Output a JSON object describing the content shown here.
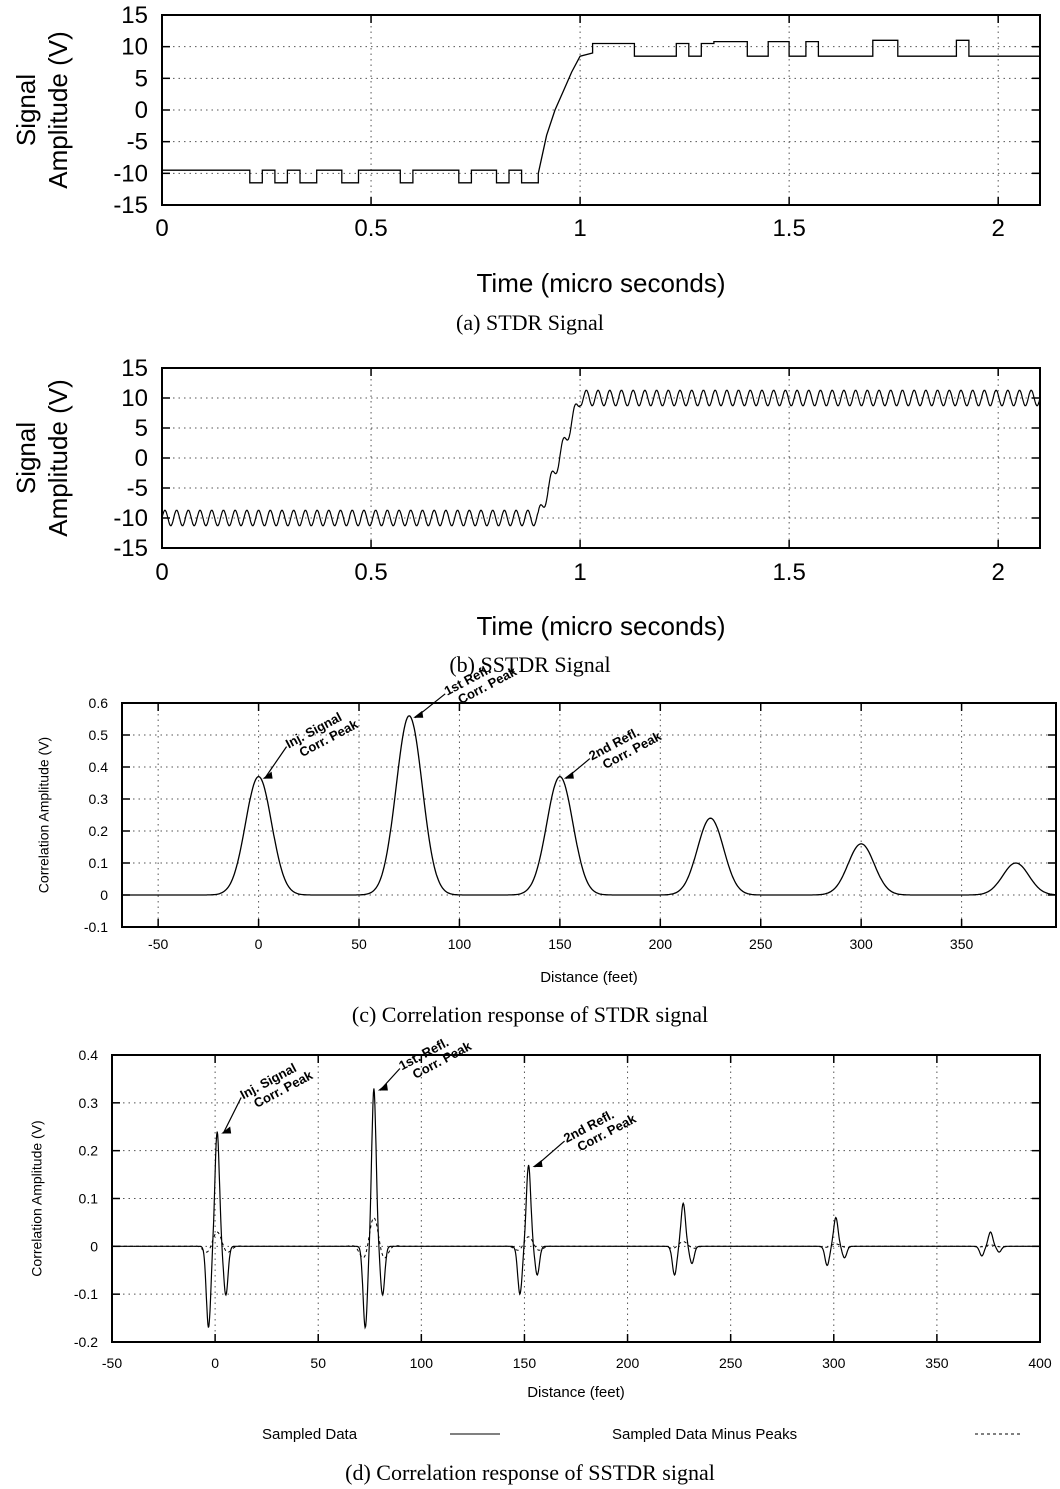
{
  "chart_data": [
    {
      "type": "line",
      "panel": "a",
      "caption": "(a) STDR Signal",
      "xlabel": "Time (micro seconds)",
      "ylabel": "Signal Amplitude (V)",
      "xlim": [
        0,
        2.1
      ],
      "ylim": [
        -15,
        15
      ],
      "xticks": [
        0,
        0.5,
        1,
        1.5,
        2
      ],
      "xtick_labels": [
        "0",
        "0.5",
        "1",
        "1.5",
        "2"
      ],
      "yticks": [
        15,
        10,
        5,
        0,
        -5,
        -10,
        -15
      ],
      "ytick_labels": [
        "15",
        "10",
        "5",
        "0",
        "-5",
        "-10",
        "-15"
      ],
      "grid": true,
      "series": [
        {
          "x": [
            0,
            0.21,
            0.21,
            0.24,
            0.24,
            0.27,
            0.27,
            0.3,
            0.3,
            0.33,
            0.33,
            0.37,
            0.37,
            0.43,
            0.43,
            0.47,
            0.47,
            0.57,
            0.57,
            0.6,
            0.6,
            0.71,
            0.71,
            0.74,
            0.74,
            0.8,
            0.8,
            0.83,
            0.83,
            0.86,
            0.86,
            0.9,
            0.9,
            0.92,
            0.94,
            0.96,
            0.98,
            1.0,
            1.03,
            1.03,
            1.13,
            1.13,
            1.23,
            1.23,
            1.26,
            1.26,
            1.29,
            1.29,
            1.32,
            1.32,
            1.4,
            1.4,
            1.45,
            1.45,
            1.5,
            1.5,
            1.54,
            1.54,
            1.57,
            1.57,
            1.6,
            1.6,
            1.7,
            1.7,
            1.76,
            1.76,
            1.9,
            1.9,
            1.93,
            1.93,
            2.1
          ],
          "y": [
            -9.5,
            -9.5,
            -11.5,
            -11.5,
            -9.5,
            -9.5,
            -11.5,
            -11.5,
            -9.5,
            -9.5,
            -11.5,
            -11.5,
            -9.5,
            -9.5,
            -11.5,
            -11.5,
            -9.5,
            -9.5,
            -11.5,
            -11.5,
            -9.5,
            -9.5,
            -11.5,
            -11.5,
            -9.5,
            -9.5,
            -11.5,
            -11.5,
            -9.5,
            -9.5,
            -11.5,
            -11.5,
            -10,
            -4,
            0,
            3,
            6,
            8.5,
            9,
            10.5,
            10.5,
            8.5,
            8.5,
            10.5,
            10.5,
            8.5,
            8.5,
            10.5,
            10.5,
            10.8,
            10.8,
            8.5,
            8.5,
            10.8,
            10.8,
            8.5,
            8.5,
            10.8,
            10.8,
            8.5,
            8.5,
            8.5,
            8.5,
            11,
            11,
            8.5,
            8.5,
            11,
            11,
            8.5,
            8.5
          ]
        }
      ]
    },
    {
      "type": "line",
      "panel": "b",
      "caption": "(b) SSTDR Signal",
      "xlabel": "Time (micro seconds)",
      "ylabel": "Signal Amplitude (V)",
      "xlim": [
        0,
        2.1
      ],
      "ylim": [
        -15,
        15
      ],
      "xticks": [
        0,
        0.5,
        1,
        1.5,
        2
      ],
      "xtick_labels": [
        "0",
        "0.5",
        "1",
        "1.5",
        "2"
      ],
      "yticks": [
        15,
        10,
        5,
        0,
        -5,
        -10,
        -15
      ],
      "ytick_labels": [
        "15",
        "10",
        "5",
        "0",
        "-5",
        "-10",
        "-15"
      ],
      "grid": true,
      "series": [
        {
          "pre_level": -10,
          "post_level": 10,
          "ripple_amplitude": 1.3,
          "ripple_period": 0.028,
          "transition": {
            "start": 0.9,
            "end": 1.0
          }
        }
      ]
    },
    {
      "type": "line",
      "panel": "c",
      "caption": "(c) Correlation response of STDR signal",
      "xlabel": "Distance (feet)",
      "ylabel": "Correlation Amplitude (V)",
      "xlim": [
        -68,
        397
      ],
      "ylim": [
        -0.1,
        0.6
      ],
      "xticks": [
        -50,
        0,
        50,
        100,
        150,
        200,
        250,
        300,
        350
      ],
      "xtick_labels": [
        "-50",
        "0",
        "50",
        "100",
        "150",
        "200",
        "250",
        "300",
        "350"
      ],
      "yticks": [
        0.6,
        0.5,
        0.4,
        0.3,
        0.2,
        0.1,
        0,
        -0.1
      ],
      "ytick_labels": [
        "0.6",
        "0.5",
        "0.4",
        "0.3",
        "0.2",
        "0.1",
        "0",
        "-0.1"
      ],
      "grid": true,
      "series": [
        {
          "peaks": [
            {
              "x": 0,
              "y": 0.37
            },
            {
              "x": 75,
              "y": 0.56
            },
            {
              "x": 150,
              "y": 0.37
            },
            {
              "x": 225,
              "y": 0.24
            },
            {
              "x": 300,
              "y": 0.16
            },
            {
              "x": 377,
              "y": 0.1
            }
          ],
          "peak_width": 6.5
        }
      ],
      "annotations": [
        {
          "line1": "Inj. Signal",
          "line2": "Corr. Peak",
          "x": 0,
          "y": 0.37
        },
        {
          "line1": "1st Refl.",
          "line2": "Corr. Peak",
          "x": 75,
          "y": 0.56
        },
        {
          "line1": "2nd Refl.",
          "line2": "Corr. Peak",
          "x": 150,
          "y": 0.37
        }
      ]
    },
    {
      "type": "line",
      "panel": "d",
      "caption": "(d) Correlation response of SSTDR signal",
      "xlabel": "Distance (feet)",
      "ylabel": "Correlation Amplitude (V)",
      "xlim": [
        -50,
        400
      ],
      "ylim": [
        -0.2,
        0.4
      ],
      "xticks": [
        -50,
        0,
        50,
        100,
        150,
        200,
        250,
        300,
        350,
        400
      ],
      "xtick_labels": [
        "-50",
        "0",
        "50",
        "100",
        "150",
        "200",
        "250",
        "300",
        "350",
        "400"
      ],
      "yticks": [
        0.4,
        0.3,
        0.2,
        0.1,
        0,
        -0.1,
        -0.2
      ],
      "ytick_labels": [
        "0.4",
        "0.3",
        "0.2",
        "0.1",
        "0",
        "-0.1",
        "-0.2"
      ],
      "grid": true,
      "legend_position": "bottom",
      "series": [
        {
          "name": "Sampled Data",
          "style": "solid",
          "peaks": [
            {
              "x": 1,
              "y": 0.24,
              "neg": -0.17
            },
            {
              "x": 77,
              "y": 0.33,
              "neg": -0.17
            },
            {
              "x": 152,
              "y": 0.17,
              "neg": -0.1
            },
            {
              "x": 227,
              "y": 0.09,
              "neg": -0.06
            },
            {
              "x": 301,
              "y": 0.06,
              "neg": -0.04
            },
            {
              "x": 376,
              "y": 0.03,
              "neg": -0.02
            }
          ]
        },
        {
          "name": "Sampled Data Minus Peaks",
          "style": "dashed",
          "peaks": [
            {
              "x": 1,
              "y": 0.03
            },
            {
              "x": 77,
              "y": 0.06
            },
            {
              "x": 152,
              "y": 0.02
            },
            {
              "x": 227,
              "y": 0.01
            },
            {
              "x": 301,
              "y": 0.005
            },
            {
              "x": 376,
              "y": 0.003
            }
          ]
        }
      ],
      "annotations": [
        {
          "line1": "Inj. Signal",
          "line2": "Corr. Peak",
          "x": 1,
          "y": 0.24
        },
        {
          "line1": "1st. Refl.",
          "line2": "Corr. Peak",
          "x": 77,
          "y": 0.33
        },
        {
          "line1": "2nd Refl.",
          "line2": "Corr. Peak",
          "x": 152,
          "y": 0.17
        }
      ]
    }
  ]
}
